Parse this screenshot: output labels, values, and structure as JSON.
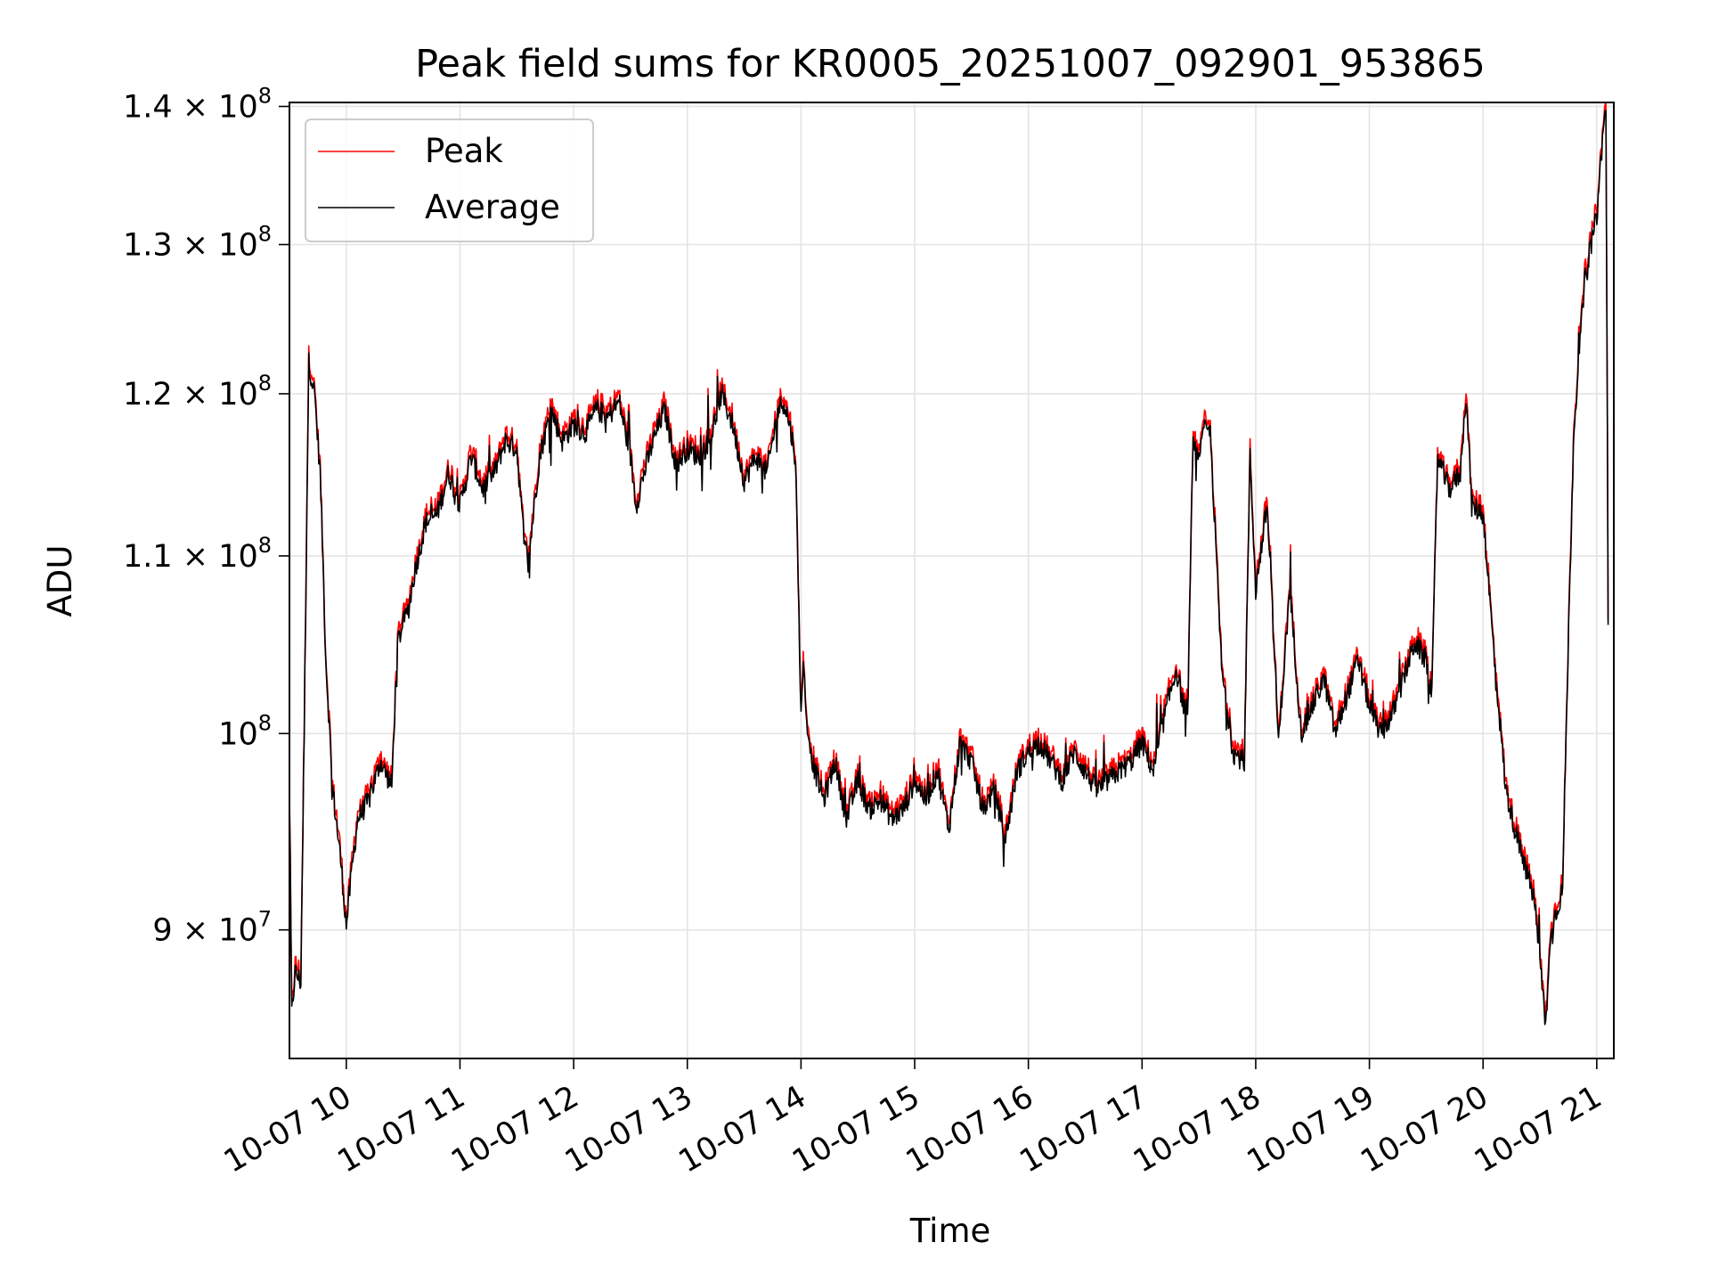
{
  "chart_data": {
    "type": "line",
    "title": "Peak field sums for KR0005_20251007_092901_953865",
    "xlabel": "Time",
    "ylabel": "ADU",
    "yscale": "log",
    "ylim": [
      84000000,
      140300000
    ],
    "xlim": [
      9.5,
      21.15
    ],
    "grid": true,
    "legend_position": "top-left",
    "x_ticks": [
      {
        "value": 10,
        "label": "10-07 10"
      },
      {
        "value": 11,
        "label": "10-07 11"
      },
      {
        "value": 12,
        "label": "10-07 12"
      },
      {
        "value": 13,
        "label": "10-07 13"
      },
      {
        "value": 14,
        "label": "10-07 14"
      },
      {
        "value": 15,
        "label": "10-07 15"
      },
      {
        "value": 16,
        "label": "10-07 16"
      },
      {
        "value": 17,
        "label": "10-07 17"
      },
      {
        "value": 18,
        "label": "10-07 18"
      },
      {
        "value": 19,
        "label": "10-07 19"
      },
      {
        "value": 20,
        "label": "10-07 20"
      },
      {
        "value": 21,
        "label": "10-07 21"
      }
    ],
    "y_ticks": [
      {
        "value": 90000000,
        "mantissa": "9",
        "times": "×",
        "base": "10",
        "exp": "7"
      },
      {
        "value": 100000000,
        "mantissa": "",
        "times": "",
        "base": "10",
        "exp": "8"
      },
      {
        "value": 110000000,
        "mantissa": "1.1",
        "times": "×",
        "base": "10",
        "exp": "8"
      },
      {
        "value": 120000000,
        "mantissa": "1.2",
        "times": "×",
        "base": "10",
        "exp": "8"
      },
      {
        "value": 130000000,
        "mantissa": "1.3",
        "times": "×",
        "base": "10",
        "exp": "8"
      },
      {
        "value": 140000000,
        "mantissa": "1.4",
        "times": "×",
        "base": "10",
        "exp": "8"
      }
    ],
    "series": [
      {
        "name": "Peak",
        "color": "#ff0000",
        "peak_offset_fraction": 0.004
      },
      {
        "name": "Average",
        "color": "#000000",
        "peak_offset_fraction": 0.0
      }
    ],
    "x": [
      9.5,
      9.52,
      9.55,
      9.6,
      9.63,
      9.67,
      9.72,
      9.77,
      9.82,
      9.88,
      9.95,
      10.0,
      10.05,
      10.1,
      10.2,
      10.3,
      10.4,
      10.45,
      10.5,
      10.55,
      10.6,
      10.7,
      10.8,
      10.9,
      11.0,
      11.1,
      11.2,
      11.3,
      11.4,
      11.5,
      11.55,
      11.6,
      11.7,
      11.8,
      11.9,
      12.0,
      12.1,
      12.2,
      12.3,
      12.4,
      12.5,
      12.55,
      12.6,
      12.7,
      12.8,
      12.9,
      13.0,
      13.1,
      13.2,
      13.3,
      13.4,
      13.5,
      13.6,
      13.7,
      13.8,
      13.85,
      13.9,
      13.95,
      14.0,
      14.02,
      14.05,
      14.1,
      14.2,
      14.3,
      14.4,
      14.5,
      14.6,
      14.7,
      14.8,
      14.9,
      15.0,
      15.1,
      15.2,
      15.3,
      15.4,
      15.5,
      15.6,
      15.7,
      15.8,
      15.9,
      16.0,
      16.1,
      16.2,
      16.3,
      16.4,
      16.5,
      16.6,
      16.7,
      16.8,
      16.9,
      17.0,
      17.1,
      17.2,
      17.3,
      17.4,
      17.45,
      17.5,
      17.55,
      17.6,
      17.7,
      17.8,
      17.9,
      17.95,
      18.0,
      18.1,
      18.2,
      18.3,
      18.4,
      18.5,
      18.6,
      18.7,
      18.8,
      18.9,
      19.0,
      19.1,
      19.2,
      19.3,
      19.4,
      19.5,
      19.55,
      19.6,
      19.7,
      19.8,
      19.85,
      19.9,
      20.0,
      20.1,
      20.2,
      20.3,
      20.4,
      20.45,
      20.5,
      20.55,
      20.6,
      20.7,
      20.8,
      20.9,
      21.0,
      21.05,
      21.08,
      21.1
    ],
    "values": [
      96500000,
      86000000,
      88000000,
      87500000,
      100000000,
      122000000,
      120000000,
      115000000,
      104000000,
      97000000,
      93500000,
      90200000,
      93000000,
      95500000,
      96500000,
      98500000,
      97200000,
      105000000,
      106000000,
      107000000,
      109000000,
      112000000,
      112500000,
      115000000,
      113000000,
      116000000,
      114000000,
      115000000,
      117000000,
      116500000,
      112000000,
      109500000,
      116000000,
      119000000,
      117000000,
      118000000,
      117500000,
      119000000,
      118500000,
      119500000,
      116000000,
      113000000,
      114500000,
      117000000,
      119000000,
      115500000,
      116500000,
      116000000,
      117000000,
      120000000,
      118000000,
      114500000,
      116000000,
      115000000,
      119000000,
      119500000,
      118000000,
      116000000,
      101000000,
      104000000,
      100500000,
      98500000,
      96500000,
      98500000,
      95500000,
      97500000,
      96000000,
      96500000,
      95500000,
      96000000,
      97500000,
      96500000,
      98000000,
      95000000,
      99500000,
      98500000,
      96000000,
      97000000,
      94500000,
      98000000,
      99000000,
      99500000,
      98500000,
      97500000,
      99000000,
      98000000,
      97000000,
      97500000,
      98000000,
      98500000,
      99500000,
      98000000,
      101000000,
      103500000,
      100500000,
      117000000,
      116000000,
      118000000,
      117500000,
      103500000,
      99000000,
      98500000,
      116000000,
      108000000,
      113000000,
      99500000,
      108000000,
      100000000,
      101500000,
      103000000,
      100000000,
      102000000,
      104000000,
      101500000,
      100000000,
      101000000,
      103000000,
      105000000,
      104000000,
      102000000,
      116000000,
      114000000,
      115000000,
      120000000,
      113000000,
      112500000,
      104000000,
      97000000,
      94500000,
      92500000,
      91500000,
      88500000,
      85500000,
      90000000,
      92000000,
      118000000,
      128000000,
      132000000,
      137500000,
      140000000,
      106000000
    ]
  }
}
